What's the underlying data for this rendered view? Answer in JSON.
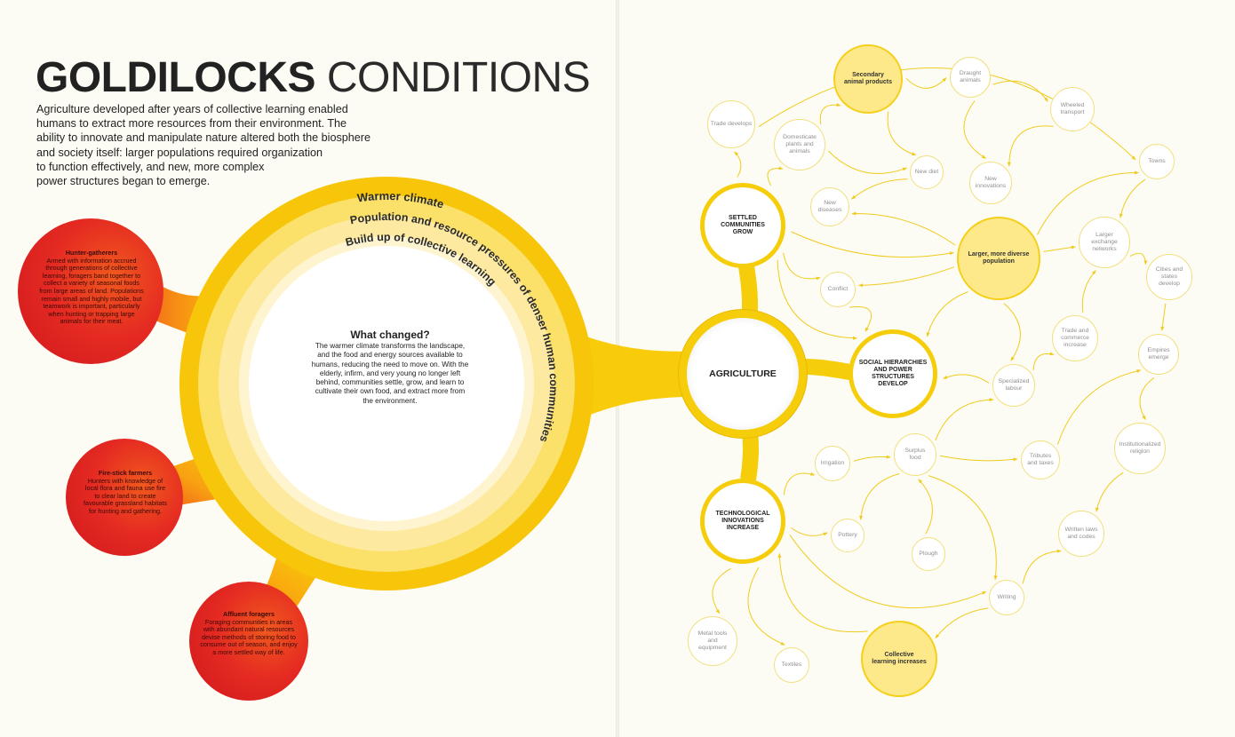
{
  "title": {
    "bold": "GOLDILOCKS",
    "light": "CONDITIONS"
  },
  "intro_lines": [
    "Agriculture developed after years of collective learning enabled",
    "humans to extract more resources from their environment. The",
    "ability to innovate and manipulate nature altered both the biosphere",
    "and society itself: larger populations required organization",
    "to function effectively, and new, more complex",
    "power structures began to emerge."
  ],
  "rings": [
    "Warmer climate",
    "Population and resource pressures of denser human communities",
    "Build up of collective learning"
  ],
  "what_changed": {
    "heading": "What changed?",
    "text": "The warmer climate transforms the landscape, and the food and energy sources available to humans, reducing the need to move on. With the elderly, infirm, and very young no longer left behind, communities settle, grow, and learn to cultivate their own food, and extract more from the environment."
  },
  "peoples": [
    {
      "heading": "Hunter-gatherers",
      "text": "Armed with information accrued through generations of collective learning, foragers band together to collect a variety of seasonal foods from large areas of land. Populations remain small and highly mobile, but teamwork is important, particularly when hunting or trapping large animals for their meat."
    },
    {
      "heading": "Fire-stick farmers",
      "text": "Hunters with knowledge of local flora and fauna use fire to clear land to create favourable grassland habitats for hunting and gathering."
    },
    {
      "heading": "Affluent foragers",
      "text": "Foraging communities in areas with abundant natural resources devise methods of storing food to consume out of season, and enjoy a more settled way of life."
    }
  ],
  "hubs": {
    "agriculture": "AGRICULTURE",
    "settled": "SETTLED COMMUNITIES GROW",
    "social": "SOCIAL HIERARCHIES AND POWER STRUCTURES DEVELOP",
    "tech": "TECHNOLOGICAL INNOVATIONS INCREASE"
  },
  "highlights": {
    "secondary": "Secondary animal products",
    "population": "Larger, more diverse population",
    "collective": "Collective learning increases"
  },
  "nodes": {
    "trade_develops": "Trade develops",
    "domesticate": "Domesticate plants and animals",
    "draught": "Draught animals",
    "wheeled": "Wheeled transport",
    "towns": "Towns",
    "new_diet": "New diet",
    "new_innovations": "New innovations",
    "new_diseases": "New diseases",
    "exchange": "Larger exchange networks",
    "cities": "Cities and states develop",
    "conflict": "Conflict",
    "trade_commerce": "Trade and commerce increase",
    "empires": "Empires emerge",
    "specialized": "Specialized labour",
    "irrigation": "Irrigation",
    "surplus": "Surplus food",
    "tributes": "Tributes and taxes",
    "institutional": "Institutionalized religion",
    "pottery": "Pottery",
    "plough": "Plough",
    "written_laws": "Written laws and codes",
    "writing": "Writing",
    "metal": "Metal tools and equipment",
    "textiles": "Textiles"
  },
  "colors": {
    "yellow": "#f6cd0a",
    "pale_yellow": "#fde98a",
    "red": "#e22a22",
    "orange": "#f2841c",
    "background": "#fdfcf4"
  }
}
